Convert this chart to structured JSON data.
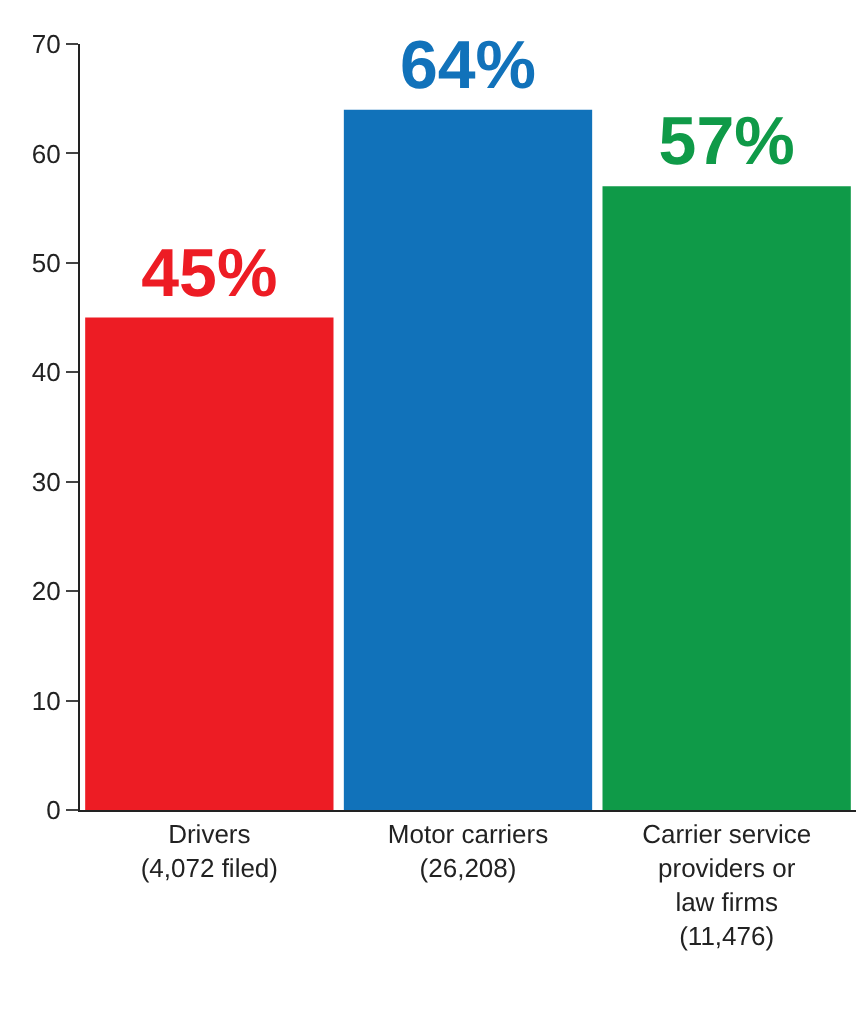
{
  "chart_data": {
    "type": "bar",
    "categories": [
      "Drivers\n(4,072 filed)",
      "Motor carriers\n(26,208)",
      "Carrier service\nproviders or\nlaw firms\n(11,476)"
    ],
    "values": [
      45,
      64,
      57
    ],
    "colors": [
      "#ed1c24",
      "#1172ba",
      "#0f9a48"
    ],
    "value_labels": [
      "45%",
      "64%",
      "57%"
    ],
    "ylim": [
      0,
      70
    ],
    "yticks": [
      0,
      10,
      20,
      30,
      40,
      50,
      60,
      70
    ]
  }
}
